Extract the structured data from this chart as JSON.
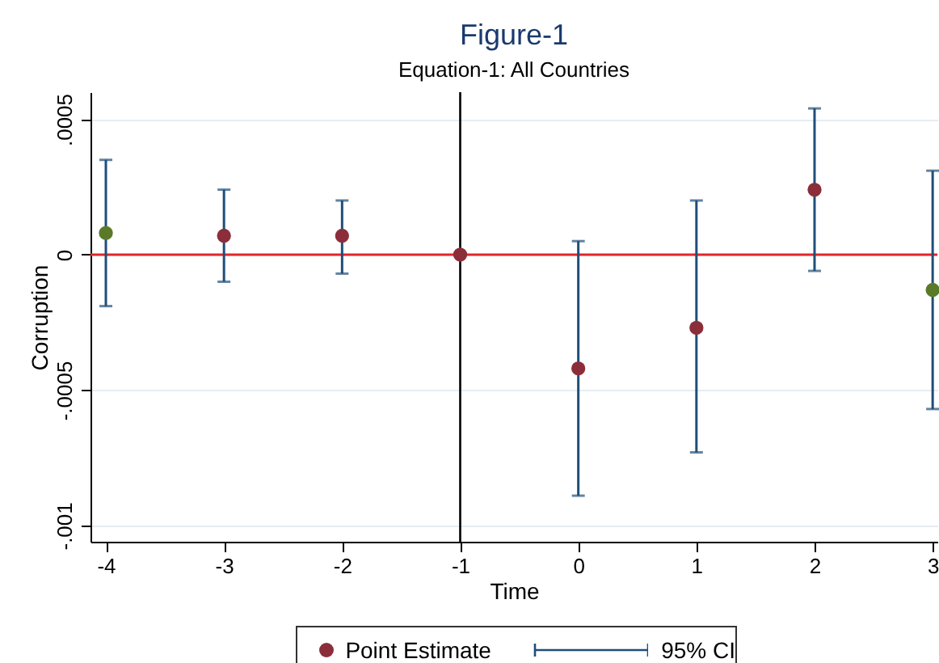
{
  "chart_data": {
    "type": "scatter",
    "title": "Figure-1",
    "subtitle": "Equation-1: All Countries",
    "xlabel": "Time",
    "ylabel": "Corruption",
    "x": [
      -4,
      -3,
      -2,
      -1,
      0,
      1,
      2,
      3
    ],
    "series": [
      {
        "name": "Point Estimate",
        "color": "#8b2e3a",
        "colors": [
          "#5a7a2a",
          "#8b2e3a",
          "#8b2e3a",
          "#8b2e3a",
          "#8b2e3a",
          "#8b2e3a",
          "#8b2e3a",
          "#5a7a2a"
        ],
        "values": [
          8e-05,
          7e-05,
          7e-05,
          0,
          -0.00042,
          -0.00027,
          0.00024,
          -0.00013
        ],
        "errors": [
          [
            -0.00019,
            0.00035
          ],
          [
            -0.0001,
            0.00024
          ],
          [
            -7e-05,
            0.0002
          ],
          null,
          [
            -0.00089,
            5e-05
          ],
          [
            -0.00073,
            0.0002
          ],
          [
            -6e-05,
            0.00054
          ],
          [
            -0.00057,
            0.00031
          ]
        ]
      }
    ],
    "annotations": [
      "95% CI"
    ],
    "xlim": [
      -4.13,
      3.04
    ],
    "xticks": [
      -4,
      -3,
      -2,
      -1,
      0,
      1,
      2,
      3
    ],
    "ylim": [
      -0.00106,
      0.0006
    ],
    "yticks": [
      {
        "value": -0.001,
        "label": "-.001"
      },
      {
        "value": -0.0005,
        "label": "-.0005"
      },
      0,
      {
        "value": 0.0005,
        "label": ".0005"
      }
    ],
    "ref_lines": [
      {
        "axis": "y",
        "value": 0,
        "color": "#e0262b"
      },
      {
        "axis": "x",
        "value": -1,
        "color": "#000000"
      }
    ],
    "grid": "y",
    "legend": "bottom",
    "marker": "circle"
  }
}
